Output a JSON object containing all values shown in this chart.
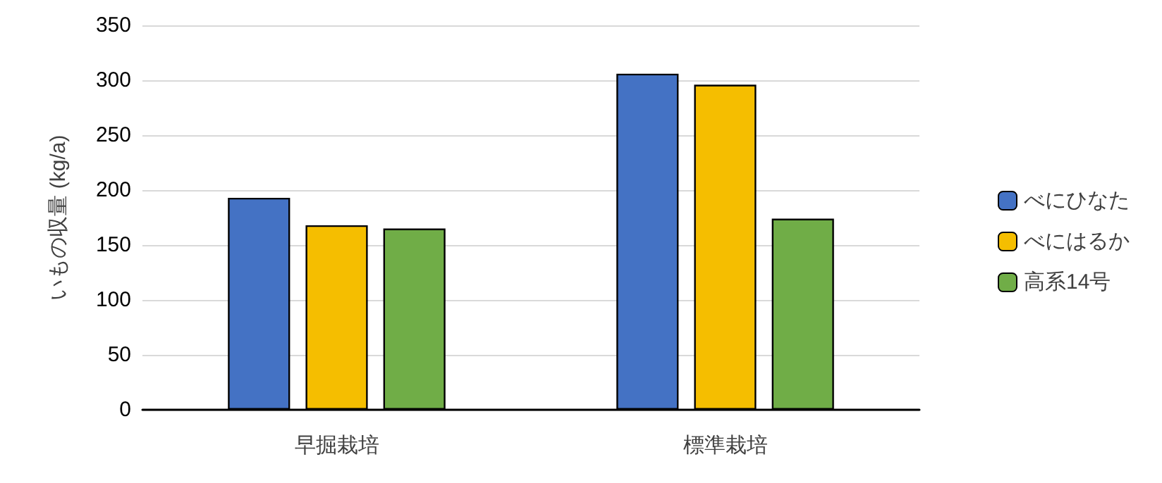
{
  "chart_data": {
    "type": "bar",
    "ylabel": "いもの収量 (kg/a)",
    "categories": [
      "早掘栽培",
      "標準栽培"
    ],
    "series": [
      {
        "name": "べにひなた",
        "color": "#4472c4",
        "values": [
          193,
          306
        ]
      },
      {
        "name": "べにはるか",
        "color": "#f5be00",
        "values": [
          168,
          296
        ]
      },
      {
        "name": "高系14号",
        "color": "#70ad47",
        "values": [
          165,
          174
        ]
      }
    ],
    "ylim": [
      0,
      350
    ],
    "yticks": [
      0,
      50,
      100,
      150,
      200,
      250,
      300,
      350
    ],
    "grid": "y",
    "legend": "right"
  }
}
